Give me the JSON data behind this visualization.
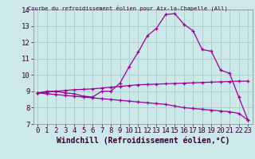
{
  "title": "Courbe du refroidissement éolien pour Aix-la-Chapelle (All)",
  "xlabel": "Windchill (Refroidissement éolien,°C)",
  "background_color": "#cce8e8",
  "line_color": "#990099",
  "grid_color": "#aacccc",
  "xlim": [
    -0.5,
    23.5
  ],
  "ylim": [
    7,
    14
  ],
  "xticks": [
    0,
    1,
    2,
    3,
    4,
    5,
    6,
    7,
    8,
    9,
    10,
    11,
    12,
    13,
    14,
    15,
    16,
    17,
    18,
    19,
    20,
    21,
    22,
    23
  ],
  "yticks": [
    7,
    8,
    9,
    10,
    11,
    12,
    13,
    14
  ],
  "curve1_x": [
    0,
    1,
    2,
    3,
    4,
    5,
    6,
    7,
    8,
    9,
    10,
    11,
    12,
    13,
    14,
    15,
    16,
    17,
    18,
    19,
    20,
    21,
    22,
    23
  ],
  "curve1_y": [
    8.9,
    9.0,
    9.0,
    8.9,
    8.85,
    8.7,
    8.65,
    9.0,
    9.0,
    9.5,
    10.5,
    11.4,
    12.4,
    12.85,
    13.7,
    13.75,
    13.1,
    12.7,
    11.55,
    11.45,
    10.3,
    10.1,
    8.65,
    7.25
  ],
  "curve2_x": [
    0,
    1,
    2,
    3,
    4,
    5,
    6,
    7,
    8,
    9,
    10,
    11,
    12,
    13,
    14,
    15,
    16,
    17,
    18,
    19,
    20,
    21,
    22,
    23
  ],
  "curve2_y": [
    8.9,
    8.95,
    9.0,
    9.05,
    9.1,
    9.12,
    9.15,
    9.2,
    9.25,
    9.3,
    9.35,
    9.4,
    9.42,
    9.44,
    9.46,
    9.48,
    9.5,
    9.52,
    9.54,
    9.56,
    9.58,
    9.6,
    9.62,
    9.62
  ],
  "curve3_x": [
    0,
    1,
    2,
    3,
    4,
    5,
    6,
    7,
    8,
    9,
    10,
    11,
    12,
    13,
    14,
    15,
    16,
    17,
    18,
    19,
    20,
    21,
    22,
    23
  ],
  "curve3_y": [
    8.9,
    8.85,
    8.8,
    8.75,
    8.7,
    8.65,
    8.6,
    8.55,
    8.5,
    8.45,
    8.4,
    8.35,
    8.3,
    8.25,
    8.2,
    8.1,
    8.0,
    7.95,
    7.9,
    7.85,
    7.8,
    7.75,
    7.65,
    7.25
  ],
  "tick_fontsize": 6.5,
  "label_fontsize": 7.0
}
